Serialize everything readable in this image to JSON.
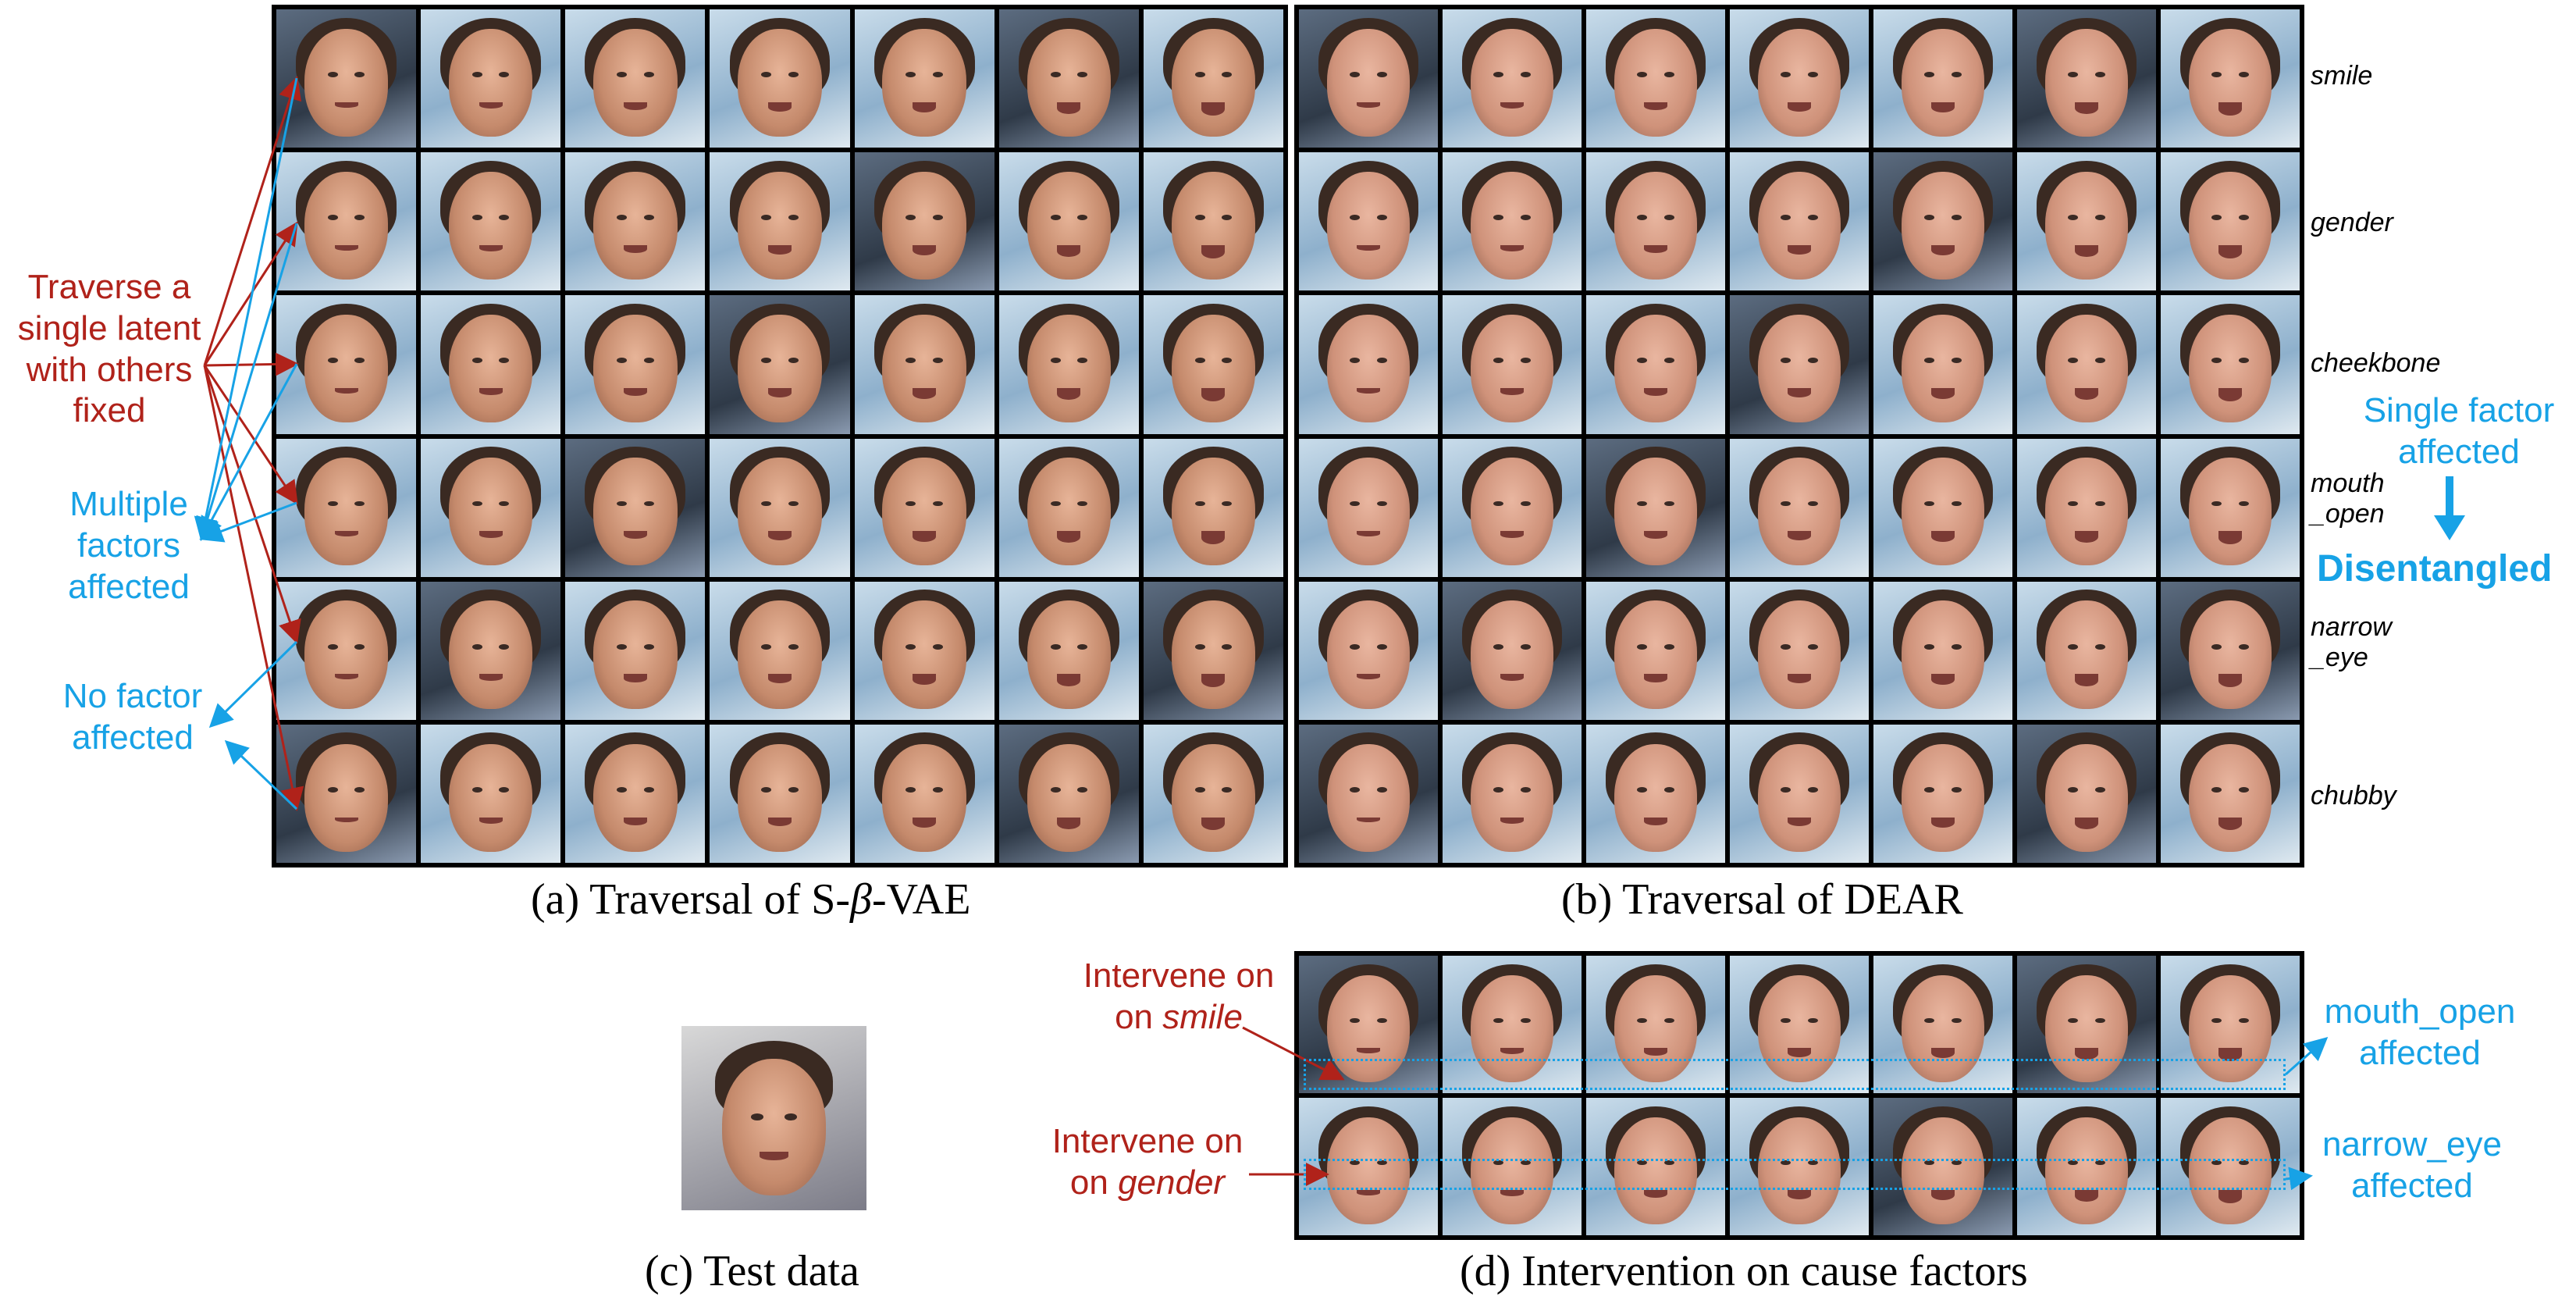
{
  "panel_a": {
    "caption_prefix": "(a) Traversal of S-",
    "caption_beta": "β",
    "caption_suffix": "-VAE",
    "annotations": {
      "traverse": "Traverse a single latent with others fixed",
      "multiple": "Multiple factors affected",
      "none": "No factor affected"
    }
  },
  "panel_b": {
    "caption": "(b) Traversal of DEAR",
    "row_labels": [
      "smile",
      "gender",
      "cheekbone",
      "mouth_open",
      "narrow_eye",
      "chubby"
    ],
    "single_factor": "Single factor affected",
    "disentangled": "Disentangled"
  },
  "panel_c": {
    "caption": "(c) Test data"
  },
  "panel_d": {
    "caption": "(d) Intervention on cause factors",
    "intervene_label": "Intervene on",
    "intervene_smile": "smile",
    "intervene_gender": "gender",
    "mouth_open_affected": "mouth_open affected",
    "narrow_eye_affected": "narrow_eye affected"
  },
  "colors": {
    "red": "#b0221a",
    "blue": "#17a2e6"
  }
}
